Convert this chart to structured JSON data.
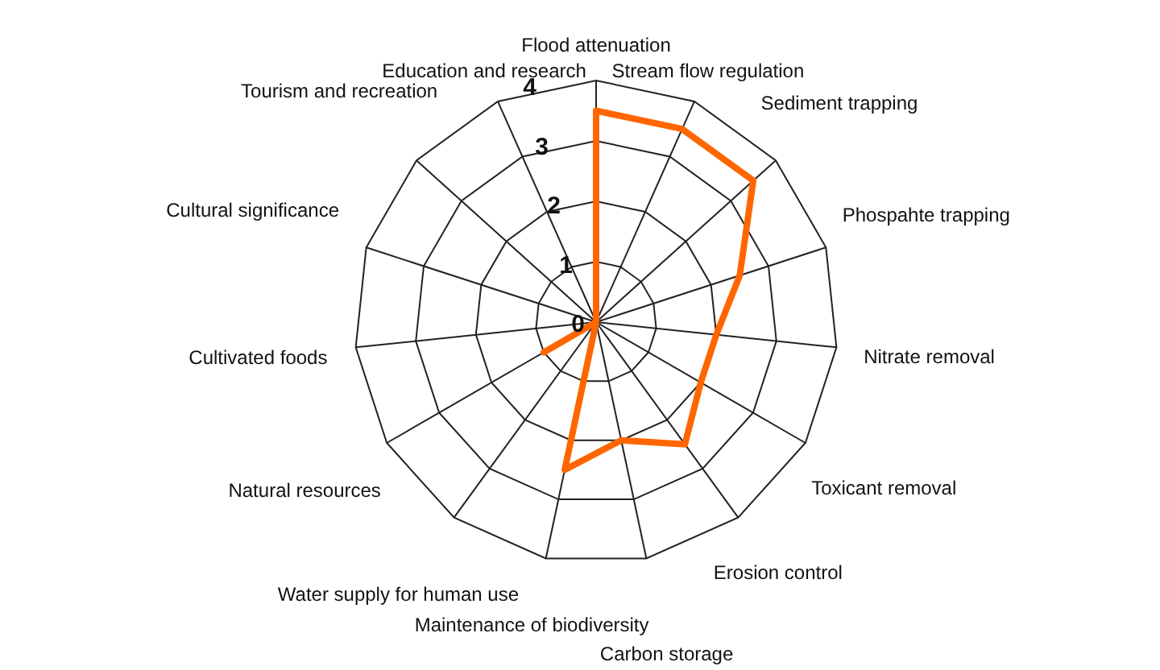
{
  "chart_data": {
    "type": "radar",
    "categories": [
      "Flood attenuation",
      "Stream flow regulation",
      "Sediment trapping",
      "Phospahte trapping",
      "Nitrate removal",
      "Toxicant removal",
      "Erosion control",
      "Carbon storage",
      "Maintenance of biodiversity",
      "Water supply for human use",
      "Natural resources",
      "Cultivated foods",
      "Cultural significance",
      "Tourism and recreation",
      "Education and research"
    ],
    "series": [
      {
        "color": "#ff6600",
        "values": [
          3.5,
          3.5,
          3.5,
          2.5,
          2,
          2,
          2.5,
          2,
          2.5,
          0,
          1,
          0,
          0,
          0,
          0
        ]
      }
    ],
    "ylim": [
      0,
      4
    ],
    "yticks": [
      0,
      1,
      2,
      3,
      4
    ],
    "marker": "none"
  }
}
